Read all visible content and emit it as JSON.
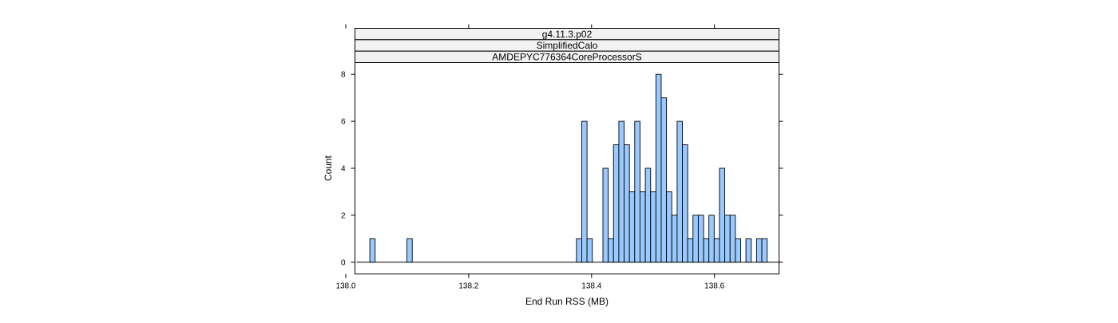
{
  "chart_data": {
    "type": "bar",
    "strips": [
      "g4.11.3.p02",
      "SimplifiedCalo",
      "AMDEPYC776364CoreProcessorS"
    ],
    "xlabel": "End Run RSS (MB)",
    "ylabel": "Count",
    "xlim": [
      138.015,
      138.705
    ],
    "ylim": [
      -0.5,
      8.5
    ],
    "xticks": [
      138.0,
      138.2,
      138.4,
      138.6
    ],
    "xtick_labels": [
      "138.0",
      "138.2",
      "138.4",
      "138.6"
    ],
    "yticks": [
      0,
      2,
      4,
      6,
      8
    ],
    "ytick_labels": [
      "0",
      "2",
      "4",
      "6",
      "8"
    ],
    "bin_start": 138.0176,
    "bin_width": 0.00862,
    "bin_range_end": 138.7072,
    "bins": [
      {
        "x": 138.0435,
        "count": 1
      },
      {
        "x": 138.1039,
        "count": 1
      },
      {
        "x": 138.3797,
        "count": 1
      },
      {
        "x": 138.3883,
        "count": 6
      },
      {
        "x": 138.3969,
        "count": 1
      },
      {
        "x": 138.4228,
        "count": 4
      },
      {
        "x": 138.4314,
        "count": 1
      },
      {
        "x": 138.44,
        "count": 5
      },
      {
        "x": 138.4487,
        "count": 6
      },
      {
        "x": 138.4573,
        "count": 5
      },
      {
        "x": 138.4659,
        "count": 3
      },
      {
        "x": 138.4745,
        "count": 6
      },
      {
        "x": 138.4831,
        "count": 3
      },
      {
        "x": 138.4918,
        "count": 4
      },
      {
        "x": 138.5004,
        "count": 3
      },
      {
        "x": 138.509,
        "count": 8
      },
      {
        "x": 138.5176,
        "count": 7
      },
      {
        "x": 138.5262,
        "count": 3
      },
      {
        "x": 138.5349,
        "count": 2
      },
      {
        "x": 138.5435,
        "count": 6
      },
      {
        "x": 138.5521,
        "count": 5
      },
      {
        "x": 138.5607,
        "count": 1
      },
      {
        "x": 138.5693,
        "count": 2
      },
      {
        "x": 138.578,
        "count": 2
      },
      {
        "x": 138.5866,
        "count": 1
      },
      {
        "x": 138.5952,
        "count": 2
      },
      {
        "x": 138.6038,
        "count": 1
      },
      {
        "x": 138.6124,
        "count": 4
      },
      {
        "x": 138.6211,
        "count": 2
      },
      {
        "x": 138.6297,
        "count": 2
      },
      {
        "x": 138.6383,
        "count": 1
      },
      {
        "x": 138.6555,
        "count": 1
      },
      {
        "x": 138.6728,
        "count": 1
      },
      {
        "x": 138.6814,
        "count": 1
      }
    ],
    "colors": {
      "bar_fill": "#99c9ff",
      "strip_bg": "#f2f2f2",
      "axis": "#000000"
    }
  }
}
